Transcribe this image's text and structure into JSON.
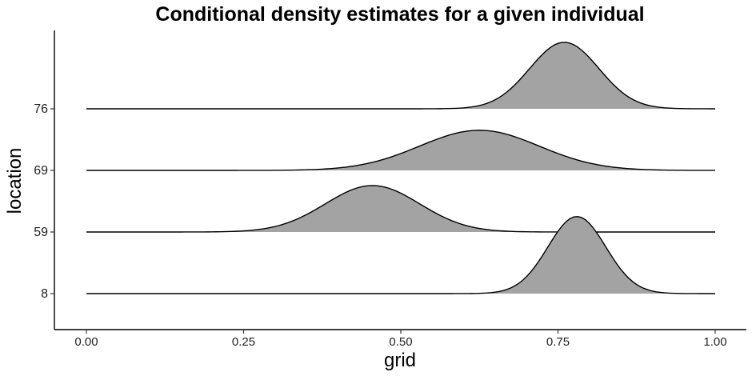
{
  "chart_data": {
    "type": "area",
    "subtype": "ridgeline",
    "title": "Conditional density estimates for a given individual",
    "xlabel": "grid",
    "ylabel": "location",
    "xlim": [
      0,
      1
    ],
    "x_ticks": [
      "0.00",
      "0.25",
      "0.50",
      "0.75",
      "1.00"
    ],
    "categories": [
      "8",
      "59",
      "69",
      "76"
    ],
    "grid": false,
    "legend": "none",
    "fill_color": "#a3a3a3",
    "line_color": "#000000",
    "series": [
      {
        "category": "8",
        "mean": 0.78,
        "sd": 0.046,
        "peak_height": 1.46
      },
      {
        "category": "59",
        "mean": 0.455,
        "sd": 0.075,
        "peak_height": 0.88
      },
      {
        "category": "69",
        "mean": 0.625,
        "sd": 0.095,
        "peak_height": 0.76
      },
      {
        "category": "76",
        "mean": 0.76,
        "sd": 0.055,
        "peak_height": 1.26
      }
    ]
  }
}
